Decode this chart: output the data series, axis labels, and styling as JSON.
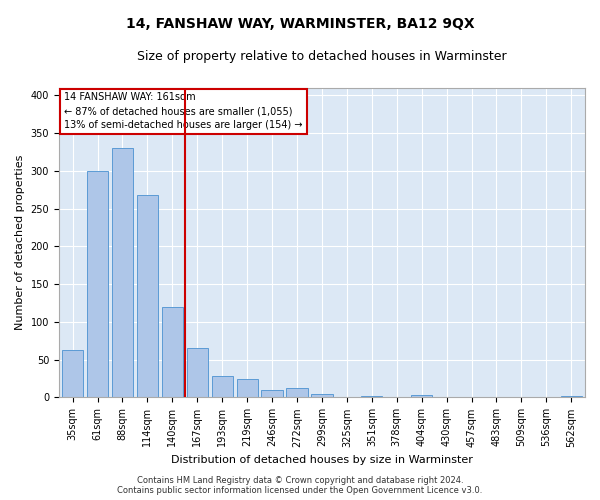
{
  "title": "14, FANSHAW WAY, WARMINSTER, BA12 9QX",
  "subtitle": "Size of property relative to detached houses in Warminster",
  "xlabel": "Distribution of detached houses by size in Warminster",
  "ylabel": "Number of detached properties",
  "footer_line1": "Contains HM Land Registry data © Crown copyright and database right 2024.",
  "footer_line2": "Contains public sector information licensed under the Open Government Licence v3.0.",
  "categories": [
    "35sqm",
    "61sqm",
    "88sqm",
    "114sqm",
    "140sqm",
    "167sqm",
    "193sqm",
    "219sqm",
    "246sqm",
    "272sqm",
    "299sqm",
    "325sqm",
    "351sqm",
    "378sqm",
    "404sqm",
    "430sqm",
    "457sqm",
    "483sqm",
    "509sqm",
    "536sqm",
    "562sqm"
  ],
  "values": [
    63,
    300,
    330,
    268,
    120,
    65,
    28,
    25,
    10,
    12,
    5,
    0,
    2,
    0,
    3,
    0,
    0,
    0,
    0,
    0,
    2
  ],
  "bar_color": "#aec6e8",
  "bar_edge_color": "#5b9bd5",
  "vline_color": "#cc0000",
  "vline_x_index": 4.5,
  "annotation_text_line1": "14 FANSHAW WAY: 161sqm",
  "annotation_text_line2": "← 87% of detached houses are smaller (1,055)",
  "annotation_text_line3": "13% of semi-detached houses are larger (154) →",
  "annotation_box_color": "#cc0000",
  "ylim": [
    0,
    410
  ],
  "yticks": [
    0,
    50,
    100,
    150,
    200,
    250,
    300,
    350,
    400
  ],
  "bg_color": "#dce8f5",
  "grid_color": "#ffffff",
  "fig_bg_color": "#ffffff",
  "title_fontsize": 10,
  "subtitle_fontsize": 9,
  "tick_fontsize": 7,
  "ylabel_fontsize": 8,
  "xlabel_fontsize": 8,
  "annotation_fontsize": 7,
  "footer_fontsize": 6
}
